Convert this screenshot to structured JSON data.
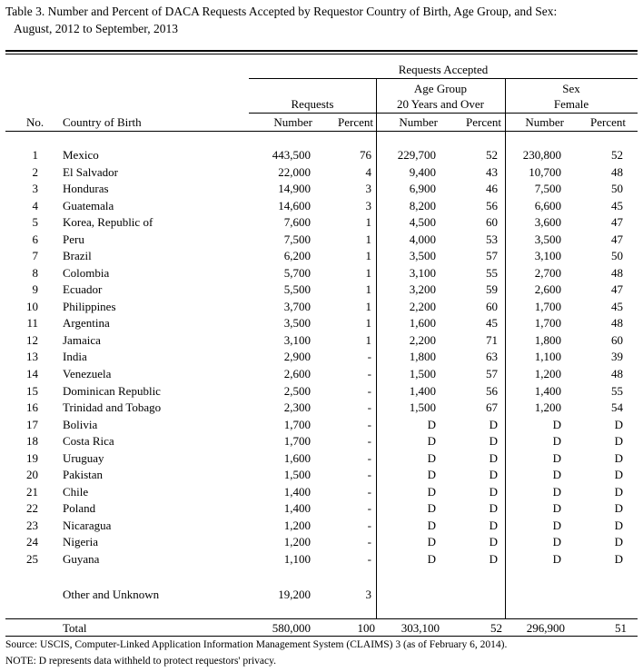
{
  "title": {
    "line1": "Table 3.  Number and Percent of DACA Requests Accepted by Requestor Country of Birth, Age Group, and Sex:",
    "line2": "August, 2012 to September, 2013"
  },
  "header": {
    "super": "Requests Accepted",
    "requests": "Requests",
    "age_group_line1": "Age Group",
    "age_group_line2": "20 Years and Over",
    "sex_line1": "Sex",
    "sex_line2": "Female",
    "no": "No.",
    "country": "Country of Birth",
    "number": "Number",
    "percent": "Percent"
  },
  "rows": [
    {
      "no": "1",
      "country": "Mexico",
      "req_n": "443,500",
      "req_p": "76",
      "age_n": "229,700",
      "age_p": "52",
      "fem_n": "230,800",
      "fem_p": "52"
    },
    {
      "no": "2",
      "country": "El Salvador",
      "req_n": "22,000",
      "req_p": "4",
      "age_n": "9,400",
      "age_p": "43",
      "fem_n": "10,700",
      "fem_p": "48"
    },
    {
      "no": "3",
      "country": "Honduras",
      "req_n": "14,900",
      "req_p": "3",
      "age_n": "6,900",
      "age_p": "46",
      "fem_n": "7,500",
      "fem_p": "50"
    },
    {
      "no": "4",
      "country": "Guatemala",
      "req_n": "14,600",
      "req_p": "3",
      "age_n": "8,200",
      "age_p": "56",
      "fem_n": "6,600",
      "fem_p": "45"
    },
    {
      "no": "5",
      "country": "Korea, Republic of",
      "req_n": "7,600",
      "req_p": "1",
      "age_n": "4,500",
      "age_p": "60",
      "fem_n": "3,600",
      "fem_p": "47"
    },
    {
      "no": "6",
      "country": "Peru",
      "req_n": "7,500",
      "req_p": "1",
      "age_n": "4,000",
      "age_p": "53",
      "fem_n": "3,500",
      "fem_p": "47"
    },
    {
      "no": "7",
      "country": "Brazil",
      "req_n": "6,200",
      "req_p": "1",
      "age_n": "3,500",
      "age_p": "57",
      "fem_n": "3,100",
      "fem_p": "50"
    },
    {
      "no": "8",
      "country": "Colombia",
      "req_n": "5,700",
      "req_p": "1",
      "age_n": "3,100",
      "age_p": "55",
      "fem_n": "2,700",
      "fem_p": "48"
    },
    {
      "no": "9",
      "country": "Ecuador",
      "req_n": "5,500",
      "req_p": "1",
      "age_n": "3,200",
      "age_p": "59",
      "fem_n": "2,600",
      "fem_p": "47"
    },
    {
      "no": "10",
      "country": "Philippines",
      "req_n": "3,700",
      "req_p": "1",
      "age_n": "2,200",
      "age_p": "60",
      "fem_n": "1,700",
      "fem_p": "45"
    },
    {
      "no": "11",
      "country": "Argentina",
      "req_n": "3,500",
      "req_p": "1",
      "age_n": "1,600",
      "age_p": "45",
      "fem_n": "1,700",
      "fem_p": "48"
    },
    {
      "no": "12",
      "country": "Jamaica",
      "req_n": "3,100",
      "req_p": "1",
      "age_n": "2,200",
      "age_p": "71",
      "fem_n": "1,800",
      "fem_p": "60"
    },
    {
      "no": "13",
      "country": "India",
      "req_n": "2,900",
      "req_p": "-",
      "age_n": "1,800",
      "age_p": "63",
      "fem_n": "1,100",
      "fem_p": "39"
    },
    {
      "no": "14",
      "country": "Venezuela",
      "req_n": "2,600",
      "req_p": "-",
      "age_n": "1,500",
      "age_p": "57",
      "fem_n": "1,200",
      "fem_p": "48"
    },
    {
      "no": "15",
      "country": "Dominican Republic",
      "req_n": "2,500",
      "req_p": "-",
      "age_n": "1,400",
      "age_p": "56",
      "fem_n": "1,400",
      "fem_p": "55"
    },
    {
      "no": "16",
      "country": "Trinidad and Tobago",
      "req_n": "2,300",
      "req_p": "-",
      "age_n": "1,500",
      "age_p": "67",
      "fem_n": "1,200",
      "fem_p": "54"
    },
    {
      "no": "17",
      "country": "Bolivia",
      "req_n": "1,700",
      "req_p": "-",
      "age_n": "D",
      "age_p": "D",
      "fem_n": "D",
      "fem_p": "D"
    },
    {
      "no": "18",
      "country": "Costa Rica",
      "req_n": "1,700",
      "req_p": "-",
      "age_n": "D",
      "age_p": "D",
      "fem_n": "D",
      "fem_p": "D"
    },
    {
      "no": "19",
      "country": "Uruguay",
      "req_n": "1,600",
      "req_p": "-",
      "age_n": "D",
      "age_p": "D",
      "fem_n": "D",
      "fem_p": "D"
    },
    {
      "no": "20",
      "country": "Pakistan",
      "req_n": "1,500",
      "req_p": "-",
      "age_n": "D",
      "age_p": "D",
      "fem_n": "D",
      "fem_p": "D"
    },
    {
      "no": "21",
      "country": "Chile",
      "req_n": "1,400",
      "req_p": "-",
      "age_n": "D",
      "age_p": "D",
      "fem_n": "D",
      "fem_p": "D"
    },
    {
      "no": "22",
      "country": "Poland",
      "req_n": "1,400",
      "req_p": "-",
      "age_n": "D",
      "age_p": "D",
      "fem_n": "D",
      "fem_p": "D"
    },
    {
      "no": "23",
      "country": "Nicaragua",
      "req_n": "1,200",
      "req_p": "-",
      "age_n": "D",
      "age_p": "D",
      "fem_n": "D",
      "fem_p": "D"
    },
    {
      "no": "24",
      "country": "Nigeria",
      "req_n": "1,200",
      "req_p": "-",
      "age_n": "D",
      "age_p": "D",
      "fem_n": "D",
      "fem_p": "D"
    },
    {
      "no": "25",
      "country": "Guyana",
      "req_n": "1,100",
      "req_p": "-",
      "age_n": "D",
      "age_p": "D",
      "fem_n": "D",
      "fem_p": "D"
    }
  ],
  "other": {
    "country": "Other and Unknown",
    "req_n": "19,200",
    "req_p": "3"
  },
  "total": {
    "label": "Total",
    "req_n": "580,000",
    "req_p": "100",
    "age_n": "303,100",
    "age_p": "52",
    "fem_n": "296,900",
    "fem_p": "51"
  },
  "footnotes": {
    "source": "Source:  USCIS, Computer-Linked Application Information Management System (CLAIMS) 3 (as of February 6, 2014).",
    "note": "NOTE: D represents data withheld to protect requestors' privacy."
  }
}
